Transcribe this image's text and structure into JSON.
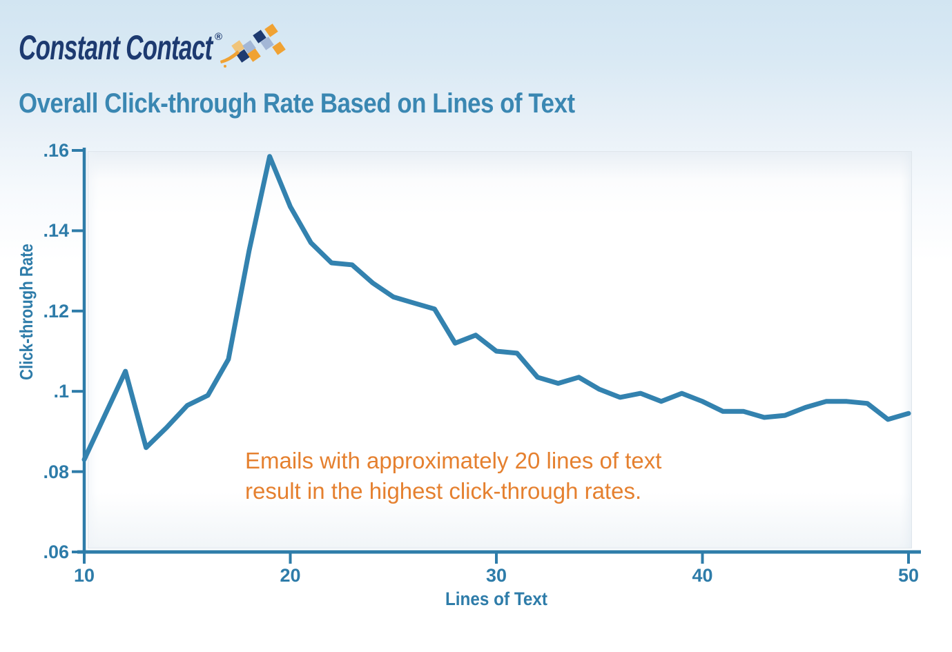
{
  "logo": {
    "text": "Constant Contact",
    "registered": "®",
    "icon": "checkered-flag-icon"
  },
  "title": "Overall Click-through Rate Based on Lines of Text",
  "annotation": {
    "line1": "Emails with approximately 20 lines of text",
    "line2": "result in the highest click-through rates."
  },
  "colors": {
    "background_top": "#d2e5f2",
    "title": "#3a87b2",
    "axis": "#2e7ca9",
    "line": "#3382af",
    "annotation": "#e5802f",
    "logo_navy": "#1d3a70",
    "logo_orange": "#f0a233",
    "logo_lightblue": "#a3b7d6"
  },
  "chart_data": {
    "type": "line",
    "title": "Overall Click-through Rate Based on Lines of Text",
    "xlabel": "Lines of Text",
    "ylabel": "Click-through Rate",
    "xlim": [
      10,
      50
    ],
    "ylim": [
      0.06,
      0.16
    ],
    "grid": false,
    "legend": null,
    "x_ticks": [
      {
        "label": "10",
        "value": 10
      },
      {
        "label": "20",
        "value": 20
      },
      {
        "label": "30",
        "value": 30
      },
      {
        "label": "40",
        "value": 40
      },
      {
        "label": "50",
        "value": 50
      }
    ],
    "y_ticks": [
      {
        "label": ".06",
        "value": 0.06
      },
      {
        "label": ".08",
        "value": 0.08
      },
      {
        "label": ".1",
        "value": 0.1
      },
      {
        "label": ".12",
        "value": 0.12
      },
      {
        "label": ".14",
        "value": 0.14
      },
      {
        "label": ".16",
        "value": 0.16
      }
    ],
    "series": [
      {
        "name": "Overall click-through rate",
        "x": [
          10,
          11,
          12,
          13,
          14,
          15,
          16,
          17,
          18,
          19,
          20,
          21,
          22,
          23,
          24,
          25,
          26,
          27,
          28,
          29,
          30,
          31,
          32,
          33,
          34,
          35,
          36,
          37,
          38,
          39,
          40,
          41,
          42,
          43,
          44,
          45,
          46,
          47,
          48,
          49,
          50
        ],
        "values": [
          0.083,
          0.094,
          0.105,
          0.086,
          0.091,
          0.0965,
          0.099,
          0.108,
          0.135,
          0.1585,
          0.146,
          0.137,
          0.132,
          0.1315,
          0.127,
          0.1235,
          0.122,
          0.1205,
          0.112,
          0.114,
          0.11,
          0.1095,
          0.1035,
          0.102,
          0.1035,
          0.1005,
          0.0985,
          0.0995,
          0.0975,
          0.0995,
          0.0975,
          0.095,
          0.095,
          0.0935,
          0.094,
          0.096,
          0.0975,
          0.0975,
          0.097,
          0.093,
          0.0945
        ]
      }
    ]
  }
}
